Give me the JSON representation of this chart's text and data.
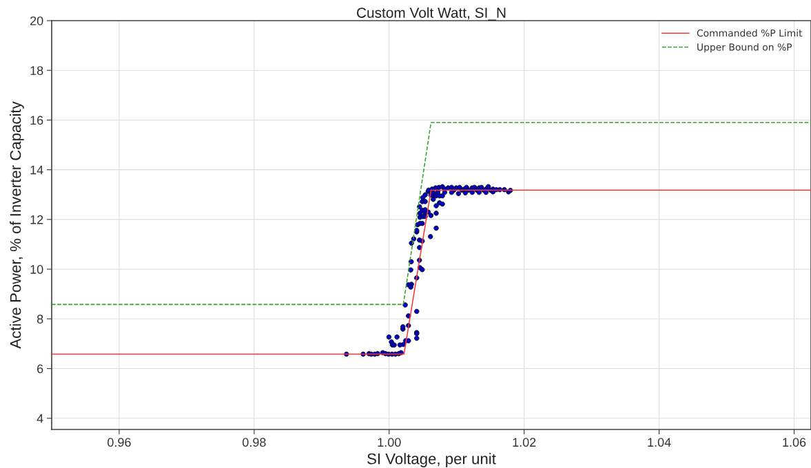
{
  "chart_data": {
    "type": "scatter",
    "title": "Custom Volt Watt, SI_N",
    "xlabel": "SI Voltage, per unit",
    "ylabel": "Active Power, % of Inverter Capacity",
    "xlim": [
      0.95,
      1.0625
    ],
    "xticks": [
      {
        "value": 0.96,
        "label": "0.96"
      },
      {
        "value": 0.98,
        "label": "0.98"
      },
      {
        "value": 1.0,
        "label": "1.00"
      },
      {
        "value": 1.02,
        "label": "1.02"
      },
      {
        "value": 1.04,
        "label": "1.04"
      },
      {
        "value": 1.06,
        "label": "1.06"
      }
    ],
    "ylim": [
      3.55,
      20
    ],
    "yticks": [
      4,
      6,
      8,
      10,
      12,
      14,
      16,
      18,
      20
    ],
    "grid": true,
    "legend": "top right",
    "series": [
      {
        "name": "Commanded %P Limit",
        "type": "line",
        "color": "#ff3333",
        "line_style": "solid",
        "marker": "none",
        "x": [
          0.95,
          1.0022,
          1.0062,
          1.0625
        ],
        "values": [
          6.58,
          6.58,
          13.18,
          13.18
        ]
      },
      {
        "name": "Upper Bound on %P",
        "type": "line",
        "color": "#33a02c",
        "line_style": "dashed",
        "marker": "none",
        "x": [
          0.95,
          1.0021,
          1.0062,
          1.0625
        ],
        "values": [
          8.58,
          8.58,
          15.9,
          15.9
        ]
      },
      {
        "color": "#0000cc",
        "marker": "circle",
        "x": [
          0.99367,
          0.99615,
          0.99701,
          0.99735,
          0.99786,
          0.9983,
          0.99905,
          0.99946,
          0.9999,
          1.00041,
          1.00092,
          1.00143,
          1.00177,
          0.99997,
          1.00116,
          1.00034,
          1.00048,
          1.00075,
          1.0016,
          1.00211,
          1.00245,
          1.00286,
          1.00204,
          1.00204,
          1.00286,
          1.00286,
          1.00408,
          1.00408,
          1.00408,
          1.00408,
          1.00238,
          1.00286,
          1.0033,
          1.0032,
          1.00408,
          1.0032,
          1.00327,
          1.00449,
          1.00456,
          1.0049,
          1.0033,
          1.00364,
          1.00449,
          1.0049,
          1.00449,
          1.00408,
          1.00408,
          1.00422,
          1.00456,
          1.0049,
          1.00456,
          1.005,
          1.00534,
          1.00456,
          1.00534,
          1.0049,
          1.00534,
          1.00578,
          1.00619,
          1.00612,
          1.00697,
          1.00697,
          1.00449,
          1.0049,
          1.00534,
          1.005,
          1.00534,
          1.00578,
          1.00619,
          1.00653,
          1.00653,
          1.00697,
          1.00745,
          1.00789,
          1.00653,
          1.00697,
          1.00745,
          1.00789,
          1.00619,
          1.00585,
          1.00636,
          1.00687,
          1.00738,
          1.00789,
          1.00823,
          1.00874,
          1.00925,
          1.00959,
          1.00993,
          1.01044,
          1.01078,
          1.01112,
          1.01146,
          1.0118,
          1.01231,
          1.01265,
          1.01299,
          1.01333,
          1.01367,
          1.01401,
          1.01435,
          1.01469,
          1.01503,
          1.01538,
          1.01589,
          1.0164,
          1.01707,
          1.01769,
          1.00925,
          1.01027,
          1.01129,
          1.01231,
          1.01333,
          1.01435,
          1.01538,
          1.00721,
          1.00823,
          1.01796
        ],
        "values": [
          6.58,
          6.58,
          6.6,
          6.58,
          6.58,
          6.6,
          6.64,
          6.6,
          6.58,
          6.58,
          6.58,
          6.6,
          6.64,
          7.27,
          7.27,
          7.07,
          6.95,
          6.95,
          6.95,
          6.97,
          7.12,
          7.12,
          7.59,
          7.68,
          7.73,
          8.12,
          8.3,
          7.45,
          7.41,
          7.22,
          8.56,
          9.37,
          9.39,
          9.28,
          9.65,
          9.97,
          10.3,
          10.36,
          10.06,
          9.98,
          11.05,
          11.22,
          11.17,
          11.13,
          10.87,
          11.5,
          11.56,
          11.79,
          11.84,
          11.84,
          12.09,
          12.12,
          12.12,
          12.25,
          12.25,
          12.37,
          12.39,
          12.3,
          12.16,
          11.31,
          11.65,
          12.25,
          12.51,
          12.72,
          12.72,
          12.88,
          12.99,
          13.13,
          13.13,
          12.95,
          12.81,
          12.55,
          12.67,
          12.62,
          13.07,
          12.95,
          12.95,
          12.95,
          12.98,
          13.18,
          13.22,
          13.27,
          13.29,
          13.32,
          13.22,
          13.27,
          13.29,
          13.18,
          13.27,
          13.29,
          13.18,
          13.22,
          13.29,
          13.18,
          13.27,
          13.29,
          13.18,
          13.27,
          13.29,
          13.18,
          13.22,
          13.32,
          13.18,
          13.22,
          13.2,
          13.2,
          13.2,
          13.11,
          13.09,
          13.04,
          13.07,
          13.09,
          13.09,
          13.09,
          13.11,
          13.11,
          13.09,
          13.17
        ]
      }
    ]
  }
}
